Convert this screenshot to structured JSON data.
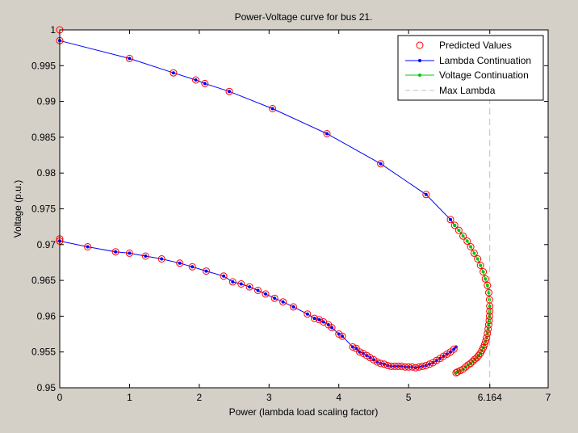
{
  "chart_data": {
    "type": "line",
    "title": "Power-Voltage curve for bus 21.",
    "xlabel": "Power (lambda load scaling factor)",
    "ylabel": "Voltage (p.u.)",
    "xlim": [
      0,
      7
    ],
    "ylim": [
      0.95,
      1.0
    ],
    "x_ticks": [
      0,
      1,
      2,
      3,
      4,
      5,
      6.164,
      7
    ],
    "x_tick_labels": [
      "0",
      "1",
      "2",
      "3",
      "4",
      "5",
      "6.164",
      "7"
    ],
    "y_ticks": [
      0.95,
      0.955,
      0.96,
      0.965,
      0.97,
      0.975,
      0.98,
      0.985,
      0.99,
      0.995,
      1.0
    ],
    "y_tick_labels": [
      "0.95",
      "0.955",
      "0.96",
      "0.965",
      "0.97",
      "0.975",
      "0.98",
      "0.985",
      "0.99",
      "0.995",
      "1"
    ],
    "grid": false,
    "legend": {
      "location": "top-right",
      "entries": [
        "Predicted Values",
        "Lambda Continuation",
        "Voltage Continuation",
        "Max Lambda"
      ]
    },
    "colors": {
      "predicted": "#ff0000",
      "lambda": "#0000ff",
      "voltage": "#00c800",
      "maxlambda": "#bfbfbf"
    },
    "series": [
      {
        "name": "Lambda Continuation",
        "style": "line-dot",
        "x": [
          0,
          1.0,
          1.63,
          1.95,
          2.08,
          2.43,
          3.05,
          3.83,
          4.6,
          5.25,
          5.6,
          5.66
        ],
        "y": [
          0.9985,
          0.996,
          0.994,
          0.993,
          0.9925,
          0.9914,
          0.989,
          0.9855,
          0.9813,
          0.977,
          0.9735,
          0.9727
        ]
      },
      {
        "name": "Voltage Continuation",
        "style": "line-dot",
        "x": [
          5.66,
          5.72,
          5.78,
          5.84,
          5.89,
          5.94,
          5.99,
          6.03,
          6.07,
          6.1,
          6.13,
          6.15,
          6.16,
          6.164,
          6.163,
          6.16,
          6.155,
          6.148,
          6.14,
          6.13,
          6.118,
          6.104,
          6.088,
          6.07,
          6.05,
          6.028,
          6.004,
          5.978,
          5.95,
          5.92,
          5.888,
          5.854,
          5.818,
          5.78,
          5.74,
          5.7,
          5.68
        ],
        "y": [
          0.9727,
          0.972,
          0.9712,
          0.9705,
          0.9697,
          0.9688,
          0.968,
          0.9671,
          0.9662,
          0.9652,
          0.9643,
          0.9633,
          0.9623,
          0.9614,
          0.9607,
          0.96,
          0.9594,
          0.9588,
          0.9582,
          0.9576,
          0.957,
          0.9565,
          0.956,
          0.9556,
          0.9552,
          0.9548,
          0.9545,
          0.9542,
          0.954,
          0.9537,
          0.9534,
          0.9532,
          0.9529,
          0.9526,
          0.9524,
          0.9522,
          0.9521
        ]
      },
      {
        "name": "Lambda Continuation",
        "style": "line-dot",
        "x": [
          5.68,
          5.65,
          5.6,
          5.55,
          5.5,
          5.45,
          5.4,
          5.35,
          5.3,
          5.25,
          5.2,
          5.15,
          5.1,
          5.05,
          5.0,
          4.95,
          4.9,
          4.85,
          4.8,
          4.75,
          4.7,
          4.65,
          4.6,
          4.55,
          4.5,
          4.45,
          4.4,
          4.35,
          4.3,
          4.25,
          4.2,
          4.05,
          4.0,
          3.9,
          3.85,
          3.78,
          3.72,
          3.65,
          3.55,
          3.35,
          3.2,
          3.08,
          2.95,
          2.84,
          2.72,
          2.6,
          2.48,
          2.35,
          2.1,
          1.9,
          1.72,
          1.46,
          1.23,
          1.0,
          0.8,
          0.4,
          0
        ],
        "y": [
          0.9557,
          0.9554,
          0.955,
          0.9547,
          0.9544,
          0.9541,
          0.9538,
          0.9535,
          0.9533,
          0.9531,
          0.953,
          0.9529,
          0.9528,
          0.9529,
          0.9529,
          0.9529,
          0.953,
          0.953,
          0.953,
          0.953,
          0.9531,
          0.9533,
          0.9534,
          0.9536,
          0.9539,
          0.9542,
          0.9545,
          0.9548,
          0.955,
          0.9555,
          0.9557,
          0.9572,
          0.9575,
          0.9584,
          0.9588,
          0.9592,
          0.9595,
          0.9597,
          0.9603,
          0.9613,
          0.962,
          0.9625,
          0.9631,
          0.9636,
          0.9641,
          0.9645,
          0.9648,
          0.9656,
          0.9663,
          0.9669,
          0.9674,
          0.968,
          0.9684,
          0.9688,
          0.969,
          0.9697,
          0.9705
        ]
      },
      {
        "name": "Predicted Values",
        "style": "marker-circle",
        "x": [
          0,
          0,
          1.0,
          1.63,
          1.95,
          2.08,
          2.43,
          3.05,
          3.83,
          4.6,
          5.25,
          5.6,
          5.66,
          5.72,
          5.78,
          5.84,
          5.89,
          5.94,
          5.99,
          6.03,
          6.07,
          6.1,
          6.13,
          6.15,
          6.16,
          6.164,
          6.163,
          6.16,
          6.155,
          6.148,
          6.14,
          6.13,
          6.118,
          6.104,
          6.088,
          6.07,
          6.05,
          6.028,
          6.004,
          5.978,
          5.95,
          5.92,
          5.888,
          5.854,
          5.818,
          5.78,
          5.74,
          5.7,
          5.68,
          5.65,
          5.6,
          5.55,
          5.5,
          5.45,
          5.4,
          5.35,
          5.3,
          5.25,
          5.2,
          5.15,
          5.1,
          5.05,
          5.0,
          4.95,
          4.9,
          4.85,
          4.8,
          4.75,
          4.7,
          4.65,
          4.6,
          4.55,
          4.5,
          4.45,
          4.4,
          4.35,
          4.3,
          4.25,
          4.2,
          4.05,
          4.0,
          3.9,
          3.85,
          3.78,
          3.72,
          3.65,
          3.55,
          3.35,
          3.2,
          3.08,
          2.95,
          2.84,
          2.72,
          2.6,
          2.48,
          2.35,
          2.1,
          1.9,
          1.72,
          1.46,
          1.23,
          1.0,
          0.8,
          0.4,
          0,
          0
        ],
        "y": [
          1.0,
          0.9985,
          0.996,
          0.994,
          0.993,
          0.9925,
          0.9914,
          0.989,
          0.9855,
          0.9813,
          0.977,
          0.9735,
          0.9727,
          0.972,
          0.9712,
          0.9705,
          0.9697,
          0.9688,
          0.968,
          0.9671,
          0.9662,
          0.9652,
          0.9643,
          0.9633,
          0.9623,
          0.9614,
          0.9607,
          0.96,
          0.9594,
          0.9588,
          0.9582,
          0.9576,
          0.957,
          0.9565,
          0.956,
          0.9556,
          0.9552,
          0.9548,
          0.9545,
          0.9542,
          0.954,
          0.9537,
          0.9534,
          0.9532,
          0.9529,
          0.9526,
          0.9524,
          0.9522,
          0.9521,
          0.9554,
          0.955,
          0.9547,
          0.9544,
          0.9541,
          0.9538,
          0.9535,
          0.9533,
          0.9531,
          0.953,
          0.9529,
          0.9528,
          0.9529,
          0.9529,
          0.9529,
          0.953,
          0.953,
          0.953,
          0.953,
          0.9531,
          0.9533,
          0.9534,
          0.9536,
          0.9539,
          0.9542,
          0.9545,
          0.9548,
          0.955,
          0.9555,
          0.9557,
          0.9572,
          0.9575,
          0.9584,
          0.9588,
          0.9592,
          0.9595,
          0.9597,
          0.9603,
          0.9613,
          0.962,
          0.9625,
          0.9631,
          0.9636,
          0.9641,
          0.9645,
          0.9648,
          0.9656,
          0.9663,
          0.9669,
          0.9674,
          0.968,
          0.9684,
          0.9688,
          0.969,
          0.9697,
          0.9705,
          0.9708
        ]
      },
      {
        "name": "Max Lambda",
        "style": "dashed-vertical",
        "x": [
          6.164,
          6.164
        ],
        "y": [
          0.95,
          1.0
        ]
      }
    ]
  }
}
